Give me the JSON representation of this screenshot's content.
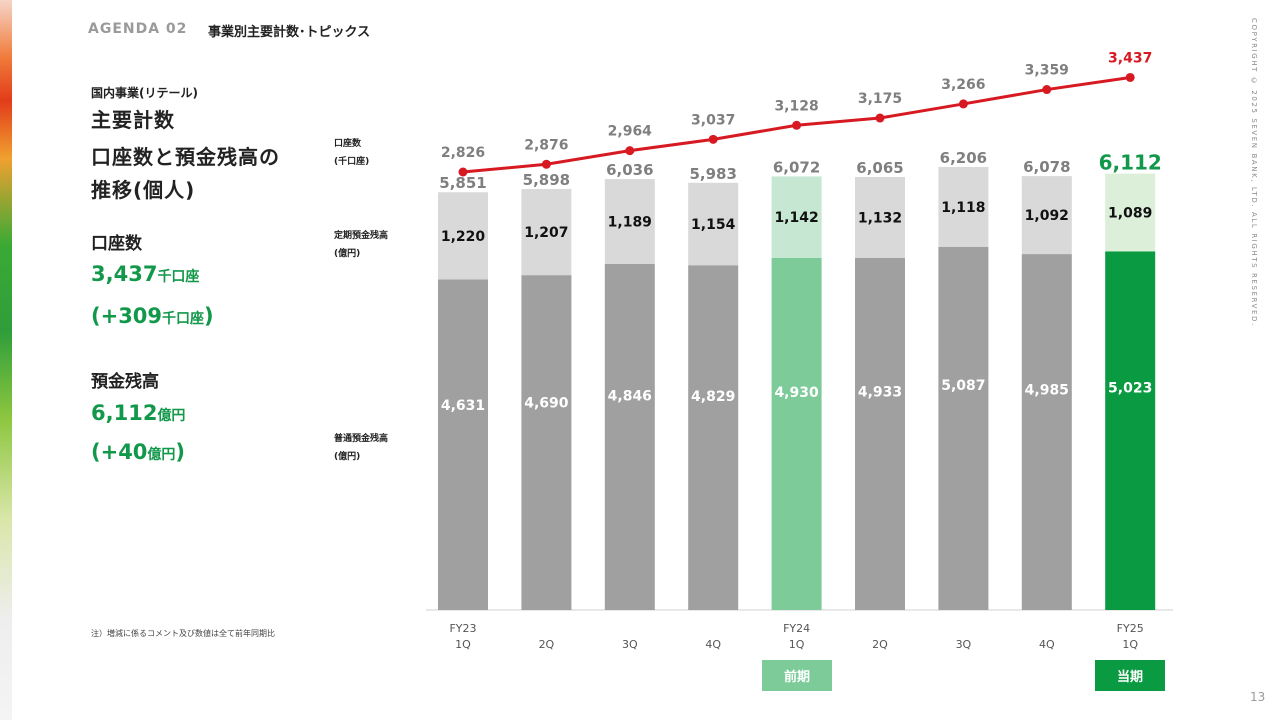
{
  "header": {
    "agenda": "AGENDA 02",
    "title": "事業別主要計数･トピックス",
    "copyright": "COPYRIGHT © 2025  SEVEN BANK, LTD. ALL RIGHTS RESERVED.",
    "page_number": "13"
  },
  "left_panel": {
    "subheading": "国内事業(リテール)",
    "heading_lines": [
      "主要計数",
      "口座数と預金残高の",
      "推移(個人)"
    ],
    "accounts": {
      "label": "口座数",
      "value": "3,437",
      "value_unit": "千口座",
      "change_prefix": "(+309",
      "change_unit": "千口座",
      "change_suffix": ")"
    },
    "deposits": {
      "label": "預金残高",
      "value": "6,112",
      "value_unit": "億円",
      "change_prefix": "(+40",
      "change_unit": "億円",
      "change_suffix": ")"
    },
    "note": "注）増減に係るコメント及び数値は全て前年同期比"
  },
  "row_labels": {
    "accounts": [
      "口座数",
      "(千口座)"
    ],
    "time_deposits": [
      "定期預金残高",
      "(億円)"
    ],
    "ordinary_deposits": [
      "普通預金残高",
      "(億円)"
    ]
  },
  "badges": {
    "previous": "前期",
    "current": "当期"
  },
  "colors": {
    "ordinary_bar": "#a0a0a0",
    "time_bar": "#d9d9d9",
    "highlight_prev_ordinary": "#7ecb9a",
    "highlight_prev_time": "#c6e7d2",
    "highlight_curr_ordinary": "#0a9b42",
    "highlight_curr_time": "#dcefd8",
    "line": "#d71a21",
    "total_label": "#7f7f7f",
    "accent_green": "#12984a"
  },
  "chart_data": {
    "type": "bar",
    "stacked": true,
    "categories": [
      [
        "FY23",
        "1Q"
      ],
      [
        "",
        "2Q"
      ],
      [
        "",
        "3Q"
      ],
      [
        "",
        "4Q"
      ],
      [
        "FY24",
        "1Q"
      ],
      [
        "",
        "2Q"
      ],
      [
        "",
        "3Q"
      ],
      [
        "",
        "4Q"
      ],
      [
        "FY25",
        "1Q"
      ]
    ],
    "series": [
      {
        "name": "普通預金残高",
        "values": [
          4631,
          4690,
          4846,
          4829,
          4930,
          4933,
          5087,
          4985,
          5023
        ]
      },
      {
        "name": "定期預金残高",
        "values": [
          1220,
          1207,
          1189,
          1154,
          1142,
          1132,
          1118,
          1092,
          1089
        ]
      }
    ],
    "totals": [
      5851,
      5898,
      6036,
      5983,
      6072,
      6065,
      6206,
      6078,
      6112
    ],
    "line_series": {
      "name": "口座数",
      "values": [
        2826,
        2876,
        2964,
        3037,
        3128,
        3175,
        3266,
        3359,
        3437
      ]
    },
    "highlight": {
      "previous_index": 4,
      "current_index": 8
    },
    "unit_bars": "億円",
    "unit_line": "千口座"
  }
}
